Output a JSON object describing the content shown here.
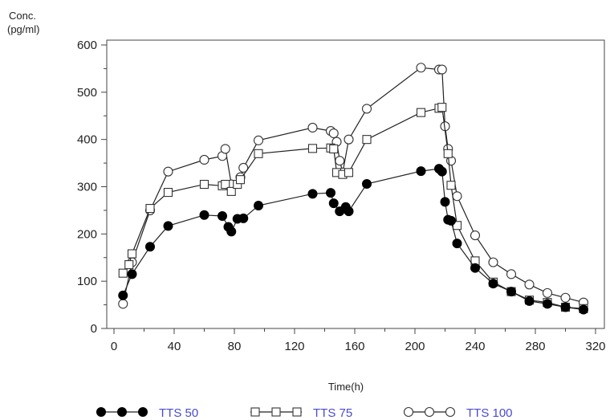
{
  "chart_data": {
    "type": "line",
    "ylabel_line1": "Conc.",
    "ylabel_line2": "(pg/ml)",
    "xlabel": "Time(h)",
    "xlim": [
      0,
      320
    ],
    "ylim": [
      0,
      600
    ],
    "x_ticks": [
      0,
      40,
      80,
      120,
      160,
      200,
      240,
      280,
      320
    ],
    "y_ticks": [
      0,
      100,
      200,
      300,
      400,
      500,
      600
    ],
    "grid": false,
    "legend_position": "bottom",
    "series": [
      {
        "name": "TTS 50",
        "marker": "filled-circle",
        "x": [
          6,
          12,
          24,
          36,
          60,
          72,
          76,
          78,
          82,
          86,
          96,
          132,
          144,
          146,
          150,
          154,
          156,
          168,
          204,
          216,
          218,
          220,
          222,
          224,
          228,
          240,
          252,
          264,
          276,
          288,
          300,
          312
        ],
        "y": [
          70,
          115,
          173,
          217,
          240,
          238,
          215,
          205,
          232,
          233,
          260,
          285,
          287,
          265,
          248,
          257,
          248,
          306,
          333,
          338,
          332,
          268,
          230,
          228,
          180,
          128,
          95,
          78,
          58,
          52,
          45,
          40
        ]
      },
      {
        "name": "TTS 75",
        "marker": "open-square",
        "x": [
          6,
          10,
          12,
          24,
          36,
          60,
          72,
          74,
          78,
          82,
          84,
          96,
          132,
          144,
          146,
          148,
          152,
          156,
          168,
          204,
          216,
          218,
          222,
          224,
          228,
          240,
          252,
          264,
          276,
          288,
          300,
          312
        ],
        "y": [
          117,
          135,
          158,
          254,
          288,
          305,
          302,
          305,
          290,
          305,
          315,
          370,
          381,
          382,
          380,
          330,
          326,
          330,
          400,
          457,
          466,
          468,
          370,
          303,
          218,
          143,
          98,
          78,
          60,
          55,
          45,
          42
        ]
      },
      {
        "name": "TTS 100",
        "marker": "open-circle",
        "x": [
          6,
          12,
          24,
          36,
          60,
          72,
          74,
          78,
          84,
          86,
          96,
          132,
          144,
          146,
          148,
          150,
          152,
          156,
          168,
          204,
          216,
          218,
          220,
          222,
          224,
          228,
          240,
          252,
          264,
          276,
          288,
          300,
          312
        ],
        "y": [
          52,
          140,
          250,
          332,
          357,
          365,
          380,
          305,
          320,
          340,
          398,
          425,
          418,
          413,
          395,
          355,
          330,
          400,
          465,
          552,
          548,
          548,
          428,
          380,
          355,
          280,
          197,
          140,
          115,
          93,
          75,
          65,
          55
        ]
      }
    ]
  }
}
